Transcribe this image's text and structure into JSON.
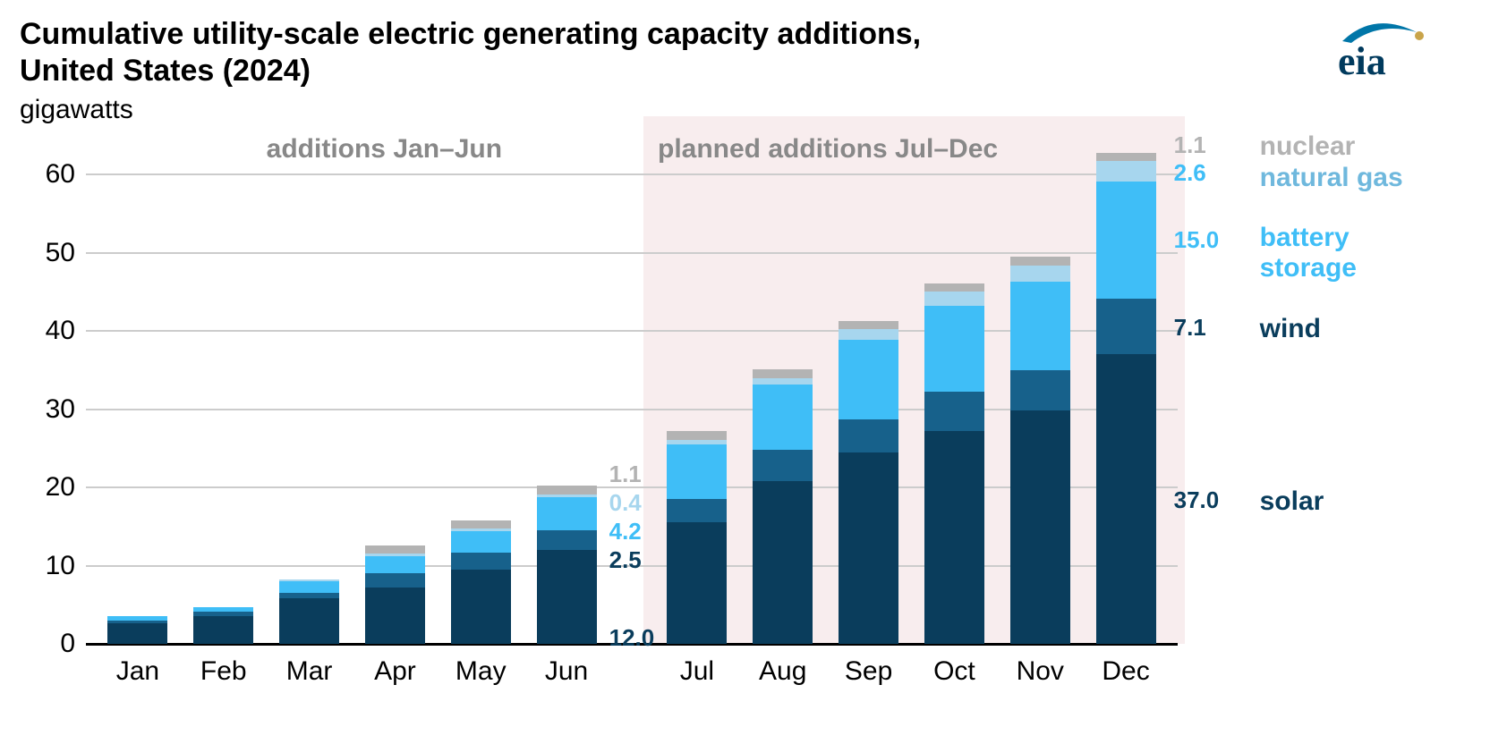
{
  "title": "Cumulative utility-scale electric generating capacity additions, United States (2024)",
  "ylabel": "gigawatts",
  "chart": {
    "type": "stacked-bar",
    "ylim": [
      0,
      64
    ],
    "yticks": [
      0,
      10,
      20,
      30,
      40,
      50,
      60
    ],
    "grid_color": "#cccccc",
    "baseline_color": "#000000",
    "background_color": "#ffffff",
    "planned_bg_color": "#f8edee",
    "categories": [
      "Jan",
      "Feb",
      "Mar",
      "Apr",
      "May",
      "Jun",
      "Jul",
      "Aug",
      "Sep",
      "Oct",
      "Nov",
      "Dec"
    ],
    "series": [
      {
        "key": "solar",
        "label": "solar",
        "color": "#0a3d5c"
      },
      {
        "key": "wind",
        "label": "wind",
        "color": "#17618b"
      },
      {
        "key": "battery",
        "label": "battery storage",
        "color": "#3fbef7"
      },
      {
        "key": "natgas",
        "label": "natural gas",
        "color": "#a7d6ee"
      },
      {
        "key": "nuclear",
        "label": "nuclear",
        "color": "#b3b3b3"
      }
    ],
    "data": {
      "solar": [
        2.6,
        3.6,
        5.8,
        7.2,
        9.5,
        12.0,
        15.5,
        20.8,
        24.5,
        27.2,
        29.8,
        37.0
      ],
      "wind": [
        0.4,
        0.5,
        0.7,
        1.8,
        2.2,
        2.5,
        3.0,
        4.0,
        4.2,
        5.0,
        5.2,
        7.1
      ],
      "battery": [
        0.5,
        0.6,
        1.5,
        2.2,
        2.7,
        4.2,
        7.0,
        8.3,
        10.2,
        11.0,
        11.3,
        15.0
      ],
      "natgas": [
        0.0,
        0.0,
        0.2,
        0.3,
        0.3,
        0.4,
        0.6,
        0.9,
        1.3,
        1.8,
        2.1,
        2.6
      ],
      "nuclear": [
        0.0,
        0.0,
        0.0,
        1.1,
        1.1,
        1.1,
        1.1,
        1.1,
        1.1,
        1.1,
        1.1,
        1.1
      ]
    },
    "sections": {
      "first": {
        "label": "additions Jan–Jun",
        "start_index": 0,
        "end_index": 5
      },
      "second": {
        "label": "planned additions Jul–Dec",
        "start_index": 6,
        "end_index": 11
      }
    },
    "bar_width_ratio": 0.7,
    "value_labels": {
      "jun": [
        {
          "key": "nuclear",
          "text": "1.1",
          "color": "#b3b3b3"
        },
        {
          "key": "natgas",
          "text": "0.4",
          "color": "#a7d6ee"
        },
        {
          "key": "battery",
          "text": "4.2",
          "color": "#3fbef7"
        },
        {
          "key": "wind",
          "text": "2.5",
          "color": "#0a3d5c"
        },
        {
          "key": "solar",
          "text": "12.0",
          "color": "#0a3d5c"
        }
      ],
      "dec": [
        {
          "key": "nuclear",
          "text": "1.1",
          "color": "#b3b3b3"
        },
        {
          "key": "natgas",
          "text": "2.6",
          "color": "#3fbef7"
        },
        {
          "key": "battery",
          "text": "15.0",
          "color": "#3fbef7"
        },
        {
          "key": "wind",
          "text": "7.1",
          "color": "#0a3d5c"
        },
        {
          "key": "solar",
          "text": "37.0",
          "color": "#0a3d5c"
        }
      ]
    },
    "legend": [
      {
        "key": "nuclear",
        "label": "nuclear",
        "color": "#b3b3b3"
      },
      {
        "key": "natgas",
        "label": "natural gas",
        "color": "#6fb8dd"
      },
      {
        "key": "battery",
        "label": "battery storage",
        "color": "#3fbef7"
      },
      {
        "key": "wind",
        "label": "wind",
        "color": "#0a3d5c"
      },
      {
        "key": "solar",
        "label": "solar",
        "color": "#0a3d5c"
      }
    ],
    "title_fontsize": 34,
    "label_fontsize": 30,
    "value_fontsize": 26
  },
  "logo": {
    "text": "eia",
    "swoosh_color": "#0076a8",
    "dot_color": "#c9a44a",
    "text_color": "#003a5d"
  }
}
